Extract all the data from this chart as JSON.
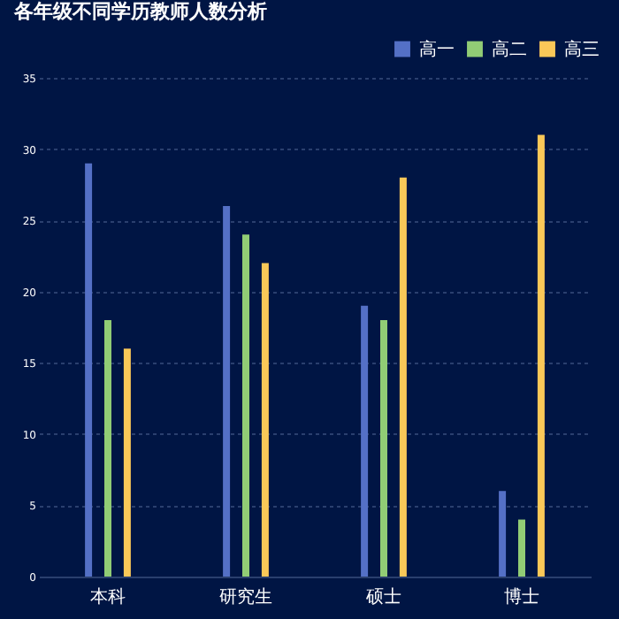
{
  "chart_data": {
    "type": "bar",
    "title": "各年级不同学历教师人数分析",
    "categories": [
      "本科",
      "研究生",
      "硕士",
      "博士"
    ],
    "series": [
      {
        "name": "高一",
        "color": "#5470c6",
        "values": [
          29,
          26,
          19,
          6
        ]
      },
      {
        "name": "高二",
        "color": "#91cc75",
        "values": [
          18,
          24,
          18,
          4
        ]
      },
      {
        "name": "高三",
        "color": "#fac858",
        "values": [
          16,
          22,
          28,
          31
        ]
      }
    ],
    "ylim": [
      0,
      35
    ],
    "yticks": [
      0,
      5,
      10,
      15,
      20,
      25,
      30,
      35
    ],
    "grid": "y",
    "legend": "top right"
  }
}
